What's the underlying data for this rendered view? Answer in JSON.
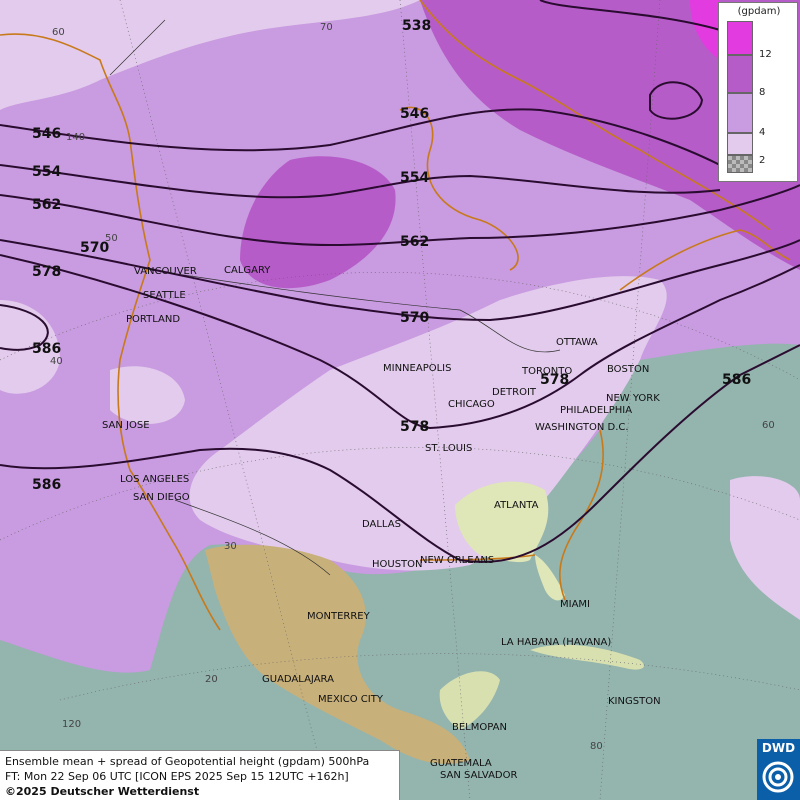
{
  "legend": {
    "unit": "(gpdam)",
    "ticks": [
      "12",
      "8",
      "4",
      "2"
    ],
    "colors": [
      "#e23be0",
      "#b65cc8",
      "#c99be0",
      "#e2cbec"
    ],
    "checker_label": "2"
  },
  "footer": {
    "line1": "Ensemble mean + spread of Geopotential height (gpdam) 500hPa",
    "line2": "FT: Mon 22 Sep 06 UTC [ICON EPS 2025 Sep 15 12UTC +162h]",
    "copyright": "©2025 Deutscher Wetterdienst"
  },
  "logo": {
    "text": "DWD",
    "icon": "dwd-swirl-icon"
  },
  "colors": {
    "ocean": "#94b4ae",
    "spread_lightest": "#e2cbec",
    "spread_light": "#c99be0",
    "spread_medium": "#b65cc8",
    "spread_high": "#e23be0",
    "coastline": "#c87a1a",
    "contour": "#2a0c30"
  },
  "contours": [
    {
      "label": "538"
    },
    {
      "label": "546"
    },
    {
      "label": "546"
    },
    {
      "label": "554"
    },
    {
      "label": "554"
    },
    {
      "label": "562"
    },
    {
      "label": "562"
    },
    {
      "label": "570"
    },
    {
      "label": "570"
    },
    {
      "label": "578"
    },
    {
      "label": "578"
    },
    {
      "label": "578"
    },
    {
      "label": "586"
    },
    {
      "label": "586"
    },
    {
      "label": "586"
    }
  ],
  "cities": [
    "VANCOUVER",
    "CALGARY",
    "SEATTLE",
    "PORTLAND",
    "MINNEAPOLIS",
    "OTTAWA",
    "TORONTO",
    "DETROIT",
    "BOSTON",
    "NEW YORK",
    "PHILADELPHIA",
    "CHICAGO",
    "WASHINGTON D.C.",
    "ST. LOUIS",
    "SAN JOSE",
    "LOS ANGELES",
    "SAN DIEGO",
    "ATLANTA",
    "DALLAS",
    "HOUSTON",
    "NEW ORLEANS",
    "MIAMI",
    "MONTERREY",
    "LA HABANA (HAVANA)",
    "GUADALAJARA",
    "MEXICO CITY",
    "KINGSTON",
    "BELMOPAN",
    "GUATEMALA",
    "SAN SALVADOR"
  ],
  "graticule_labels": [
    "70",
    "60",
    "140",
    "50",
    "40",
    "60",
    "30",
    "20",
    "120",
    "80"
  ]
}
